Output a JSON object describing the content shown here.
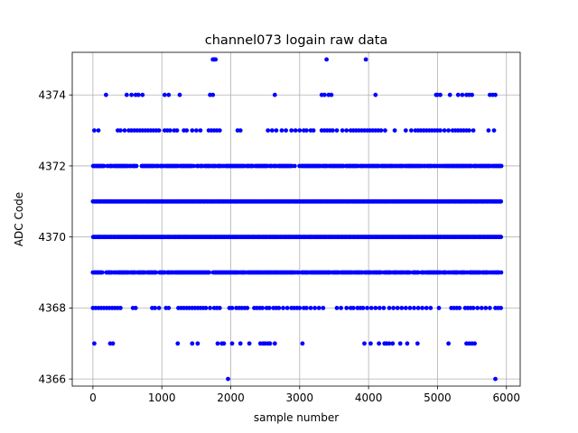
{
  "chart_data": {
    "type": "scatter",
    "title": "channel073 logain raw data",
    "xlabel": "sample number",
    "ylabel": "ADC Code",
    "xlim": [
      -300,
      6200
    ],
    "ylim": [
      4365.8,
      4375.2
    ],
    "xticks": [
      0,
      1000,
      2000,
      3000,
      4000,
      5000,
      6000
    ],
    "yticks": [
      4366,
      4368,
      4370,
      4372,
      4374
    ],
    "grid": true,
    "marker_color": "#0000ff",
    "x_range": [
      0,
      5920
    ],
    "dense_levels": [
      {
        "y": 4372,
        "density": 0.83
      },
      {
        "y": 4371,
        "density": 1.0
      },
      {
        "y": 4370,
        "density": 1.0
      },
      {
        "y": 4369,
        "density": 0.88
      }
    ],
    "points": [
      {
        "y": 4375,
        "x": [
          1740,
          1760,
          1780,
          3390,
          3960
        ]
      },
      {
        "y": 4374,
        "x": [
          190,
          490,
          560,
          620,
          660,
          720,
          1040,
          1100,
          1260,
          1700,
          1740,
          2640,
          3320,
          3360,
          3420,
          3460,
          4100,
          4980,
          5000,
          5040,
          5180,
          5300,
          5360,
          5420,
          5460,
          5500,
          5760,
          5800,
          5840
        ]
      },
      {
        "y": 4373,
        "x": [
          20,
          80,
          360,
          400,
          460,
          520,
          560,
          600,
          640,
          680,
          720,
          760,
          800,
          840,
          880,
          920,
          960,
          1040,
          1080,
          1120,
          1180,
          1220,
          1320,
          1360,
          1440,
          1500,
          1560,
          1680,
          1720,
          1760,
          1800,
          1840,
          2100,
          2140,
          2540,
          2600,
          2660,
          2740,
          2800,
          2880,
          2940,
          3000,
          3060,
          3100,
          3160,
          3200,
          3320,
          3360,
          3400,
          3440,
          3480,
          3540,
          3620,
          3680,
          3740,
          3780,
          3820,
          3860,
          3900,
          3940,
          3980,
          4020,
          4060,
          4100,
          4140,
          4180,
          4240,
          4380,
          4540,
          4620,
          4680,
          4720,
          4760,
          4800,
          4840,
          4880,
          4920,
          4960,
          5000,
          5040,
          5100,
          5160,
          5220,
          5260,
          5300,
          5340,
          5380,
          5420,
          5460,
          5520,
          5740,
          5820
        ]
      },
      {
        "y": 4368,
        "x": [
          0,
          40,
          80,
          120,
          160,
          200,
          240,
          280,
          320,
          360,
          400,
          580,
          620,
          860,
          900,
          960,
          1060,
          1100,
          1240,
          1280,
          1320,
          1360,
          1400,
          1440,
          1480,
          1520,
          1560,
          1600,
          1640,
          1700,
          1760,
          1800,
          1840,
          1980,
          2020,
          2080,
          2120,
          2160,
          2200,
          2240,
          2340,
          2380,
          2420,
          2460,
          2520,
          2560,
          2620,
          2660,
          2700,
          2760,
          2820,
          2880,
          2920,
          2960,
          3000,
          3060,
          3100,
          3160,
          3220,
          3280,
          3340,
          3540,
          3600,
          3680,
          3740,
          3780,
          3840,
          3880,
          3920,
          3980,
          4040,
          4100,
          4160,
          4220,
          4300,
          4360,
          4420,
          4480,
          4540,
          4600,
          4660,
          4720,
          4780,
          4840,
          4900,
          5020,
          5200,
          5240,
          5280,
          5320,
          5400,
          5440,
          5480,
          5520,
          5580,
          5640,
          5700,
          5760,
          5840,
          5880,
          5920
        ]
      },
      {
        "y": 4367,
        "x": [
          20,
          250,
          290,
          1230,
          1440,
          1520,
          1810,
          1870,
          1900,
          2020,
          2140,
          2270,
          2430,
          2470,
          2500,
          2540,
          2570,
          2640,
          3040,
          3940,
          4030,
          4150,
          4230,
          4260,
          4300,
          4350,
          4460,
          4560,
          4710,
          5160,
          5420,
          5460,
          5500,
          5540
        ]
      },
      {
        "y": 4366,
        "x": [
          1960,
          5840
        ]
      }
    ]
  }
}
